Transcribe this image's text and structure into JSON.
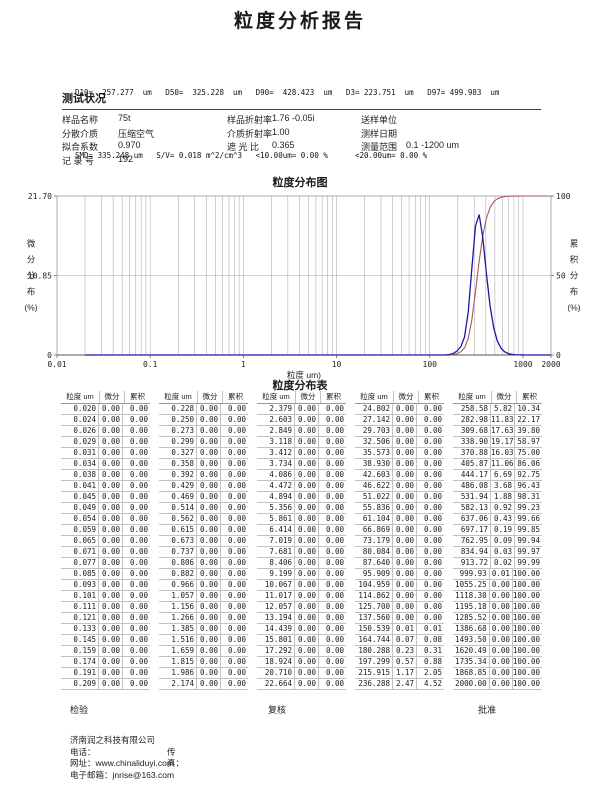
{
  "report_title": "粒度分析报告",
  "summary": {
    "line1": "D10=  257.277  um   D50=  325.228  um   D90=  428.423  um   D3= 223.751  um   D97= 499.983  um",
    "line2": "SMD= 335.248 um   S/V= 0.018 m^2/cm^3   <10.00um= 0.00 %      <20.00um= 0.00 %"
  },
  "conditions": {
    "heading": "测试状况",
    "rows": [
      [
        {
          "label": "样品名称",
          "value": "75t"
        },
        {
          "label": "样品折射率",
          "value": "1.76 -0.05i"
        },
        {
          "label": "送样单位",
          "value": ""
        }
      ],
      [
        {
          "label": "分散介质",
          "value": "压缩空气"
        },
        {
          "label": "介质折射率",
          "value": "1.00"
        },
        {
          "label": "测样日期",
          "value": ""
        }
      ],
      [
        {
          "label": "拟合系数",
          "value": "0.970"
        },
        {
          "label": "遮 光 比",
          "value": "0.365"
        },
        {
          "label": "测量范围",
          "value": "0.1 -1200 um"
        }
      ],
      [
        {
          "label": "记 录 号",
          "value": "192"
        }
      ]
    ]
  },
  "chart_data": {
    "type": "line",
    "title": "粒度分布图",
    "xlabel": "粒度 um)",
    "ylabel_left": "微分分布(%)",
    "ylabel_right": "累积分布(%)",
    "xlim": [
      0.01,
      2000
    ],
    "ylim_left": [
      0,
      21.7
    ],
    "ylim_right": [
      0,
      100
    ],
    "x_ticks": [
      "0.01",
      "0.1",
      "1",
      "10",
      "100",
      "1000",
      "2000"
    ],
    "x_tick_values": [
      0.01,
      0.1,
      1,
      10,
      100,
      1000,
      2000
    ],
    "y_ticks_left": [
      "21.70",
      "10.85",
      "0"
    ],
    "y_ticks_right": [
      "100",
      "50",
      "0"
    ],
    "grid": "log minor verticals (2-9 per decade) + horizontal midline",
    "grid_color": "#a8a8a8",
    "frame_color": "#8a8a8a",
    "axis_color": "#555555",
    "x": [
      0.02,
      0.024,
      0.026,
      0.029,
      0.031,
      0.034,
      0.038,
      0.041,
      0.045,
      0.049,
      0.054,
      0.059,
      0.065,
      0.071,
      0.077,
      0.085,
      0.093,
      0.101,
      0.111,
      0.121,
      0.133,
      0.145,
      0.159,
      0.174,
      0.191,
      0.209,
      0.228,
      0.25,
      0.273,
      0.299,
      0.327,
      0.358,
      0.392,
      0.429,
      0.469,
      0.514,
      0.562,
      0.615,
      0.673,
      0.737,
      0.806,
      0.882,
      0.966,
      1.057,
      1.156,
      1.266,
      1.385,
      1.516,
      1.659,
      1.815,
      1.986,
      2.174,
      2.379,
      2.603,
      2.849,
      3.118,
      3.412,
      3.734,
      4.086,
      4.472,
      4.894,
      5.356,
      5.861,
      6.414,
      7.019,
      7.681,
      8.406,
      9.199,
      10.067,
      11.017,
      12.057,
      13.194,
      14.439,
      15.801,
      17.292,
      18.924,
      20.71,
      22.664,
      24.802,
      27.142,
      29.703,
      32.506,
      35.573,
      38.93,
      42.603,
      46.622,
      51.022,
      55.836,
      61.104,
      66.869,
      73.179,
      80.084,
      87.64,
      95.909,
      104.959,
      114.862,
      125.7,
      137.56,
      150.539,
      164.744,
      180.288,
      197.299,
      215.915,
      236.288,
      258.58,
      282.98,
      309.68,
      338.9,
      370.88,
      405.87,
      444.17,
      486.08,
      531.94,
      582.13,
      637.06,
      697.17,
      762.95,
      834.94,
      913.72,
      999.93,
      1055.25,
      1118.3,
      1195.18,
      1285.52,
      1386.68,
      1493.5,
      1620.49,
      1735.34,
      1868.85,
      2000.0
    ],
    "series": [
      {
        "name": "微分分布",
        "axis": "left",
        "color": "#1a17a8",
        "values": [
          0,
          0,
          0,
          0,
          0,
          0,
          0,
          0,
          0,
          0,
          0,
          0,
          0,
          0,
          0,
          0,
          0,
          0,
          0,
          0,
          0,
          0,
          0,
          0,
          0,
          0,
          0,
          0,
          0,
          0,
          0,
          0,
          0,
          0,
          0,
          0,
          0,
          0,
          0,
          0,
          0,
          0,
          0,
          0,
          0,
          0,
          0,
          0,
          0,
          0,
          0,
          0,
          0,
          0,
          0,
          0,
          0,
          0,
          0,
          0,
          0,
          0,
          0,
          0,
          0,
          0,
          0,
          0,
          0,
          0,
          0,
          0,
          0,
          0,
          0,
          0,
          0,
          0,
          0,
          0,
          0,
          0,
          0,
          0,
          0,
          0,
          0,
          0,
          0,
          0,
          0,
          0,
          0,
          0,
          0,
          0,
          0,
          0,
          0.01,
          0.07,
          0.23,
          0.57,
          1.17,
          2.47,
          5.82,
          11.83,
          17.63,
          19.17,
          16.03,
          11.06,
          6.69,
          3.68,
          1.88,
          0.92,
          0.43,
          0.19,
          0.09,
          0.03,
          0.02,
          0.01,
          0,
          0,
          0,
          0,
          0,
          0,
          0,
          0,
          0,
          0
        ]
      },
      {
        "name": "累积分布",
        "axis": "right",
        "color": "#a35d58",
        "values": [
          0,
          0,
          0,
          0,
          0,
          0,
          0,
          0,
          0,
          0,
          0,
          0,
          0,
          0,
          0,
          0,
          0,
          0,
          0,
          0,
          0,
          0,
          0,
          0,
          0,
          0,
          0,
          0,
          0,
          0,
          0,
          0,
          0,
          0,
          0,
          0,
          0,
          0,
          0,
          0,
          0,
          0,
          0,
          0,
          0,
          0,
          0,
          0,
          0,
          0,
          0,
          0,
          0,
          0,
          0,
          0,
          0,
          0,
          0,
          0,
          0,
          0,
          0,
          0,
          0,
          0,
          0,
          0,
          0,
          0,
          0,
          0,
          0,
          0,
          0,
          0,
          0,
          0,
          0,
          0,
          0,
          0,
          0,
          0,
          0,
          0,
          0,
          0,
          0,
          0,
          0,
          0,
          0,
          0,
          0,
          0,
          0,
          0,
          0.01,
          0.08,
          0.31,
          0.88,
          2.05,
          4.52,
          10.34,
          22.17,
          39.8,
          58.97,
          75.0,
          86.06,
          92.75,
          96.43,
          98.31,
          99.23,
          99.66,
          99.85,
          99.94,
          99.97,
          99.99,
          100.0,
          100.0,
          100.0,
          100.0,
          100.0,
          100.0,
          100.0,
          100.0,
          100.0,
          100.0,
          100.0
        ]
      }
    ]
  },
  "table": {
    "title": "粒度分布表",
    "headers": [
      "粒度 um",
      "微分",
      "累积"
    ],
    "groups": 5,
    "rows_per_group": 26
  },
  "signatures": {
    "inspect": "检验",
    "review": "复核",
    "approve": "批准"
  },
  "company": {
    "name": "济南润之科技有限公司",
    "phone_label": "电话：",
    "fax_label": "传真：",
    "website_label": "网址：",
    "website": "www.chinaliduyi.com",
    "email_label": "电子邮箱：",
    "email": "jnrise@163.com"
  }
}
